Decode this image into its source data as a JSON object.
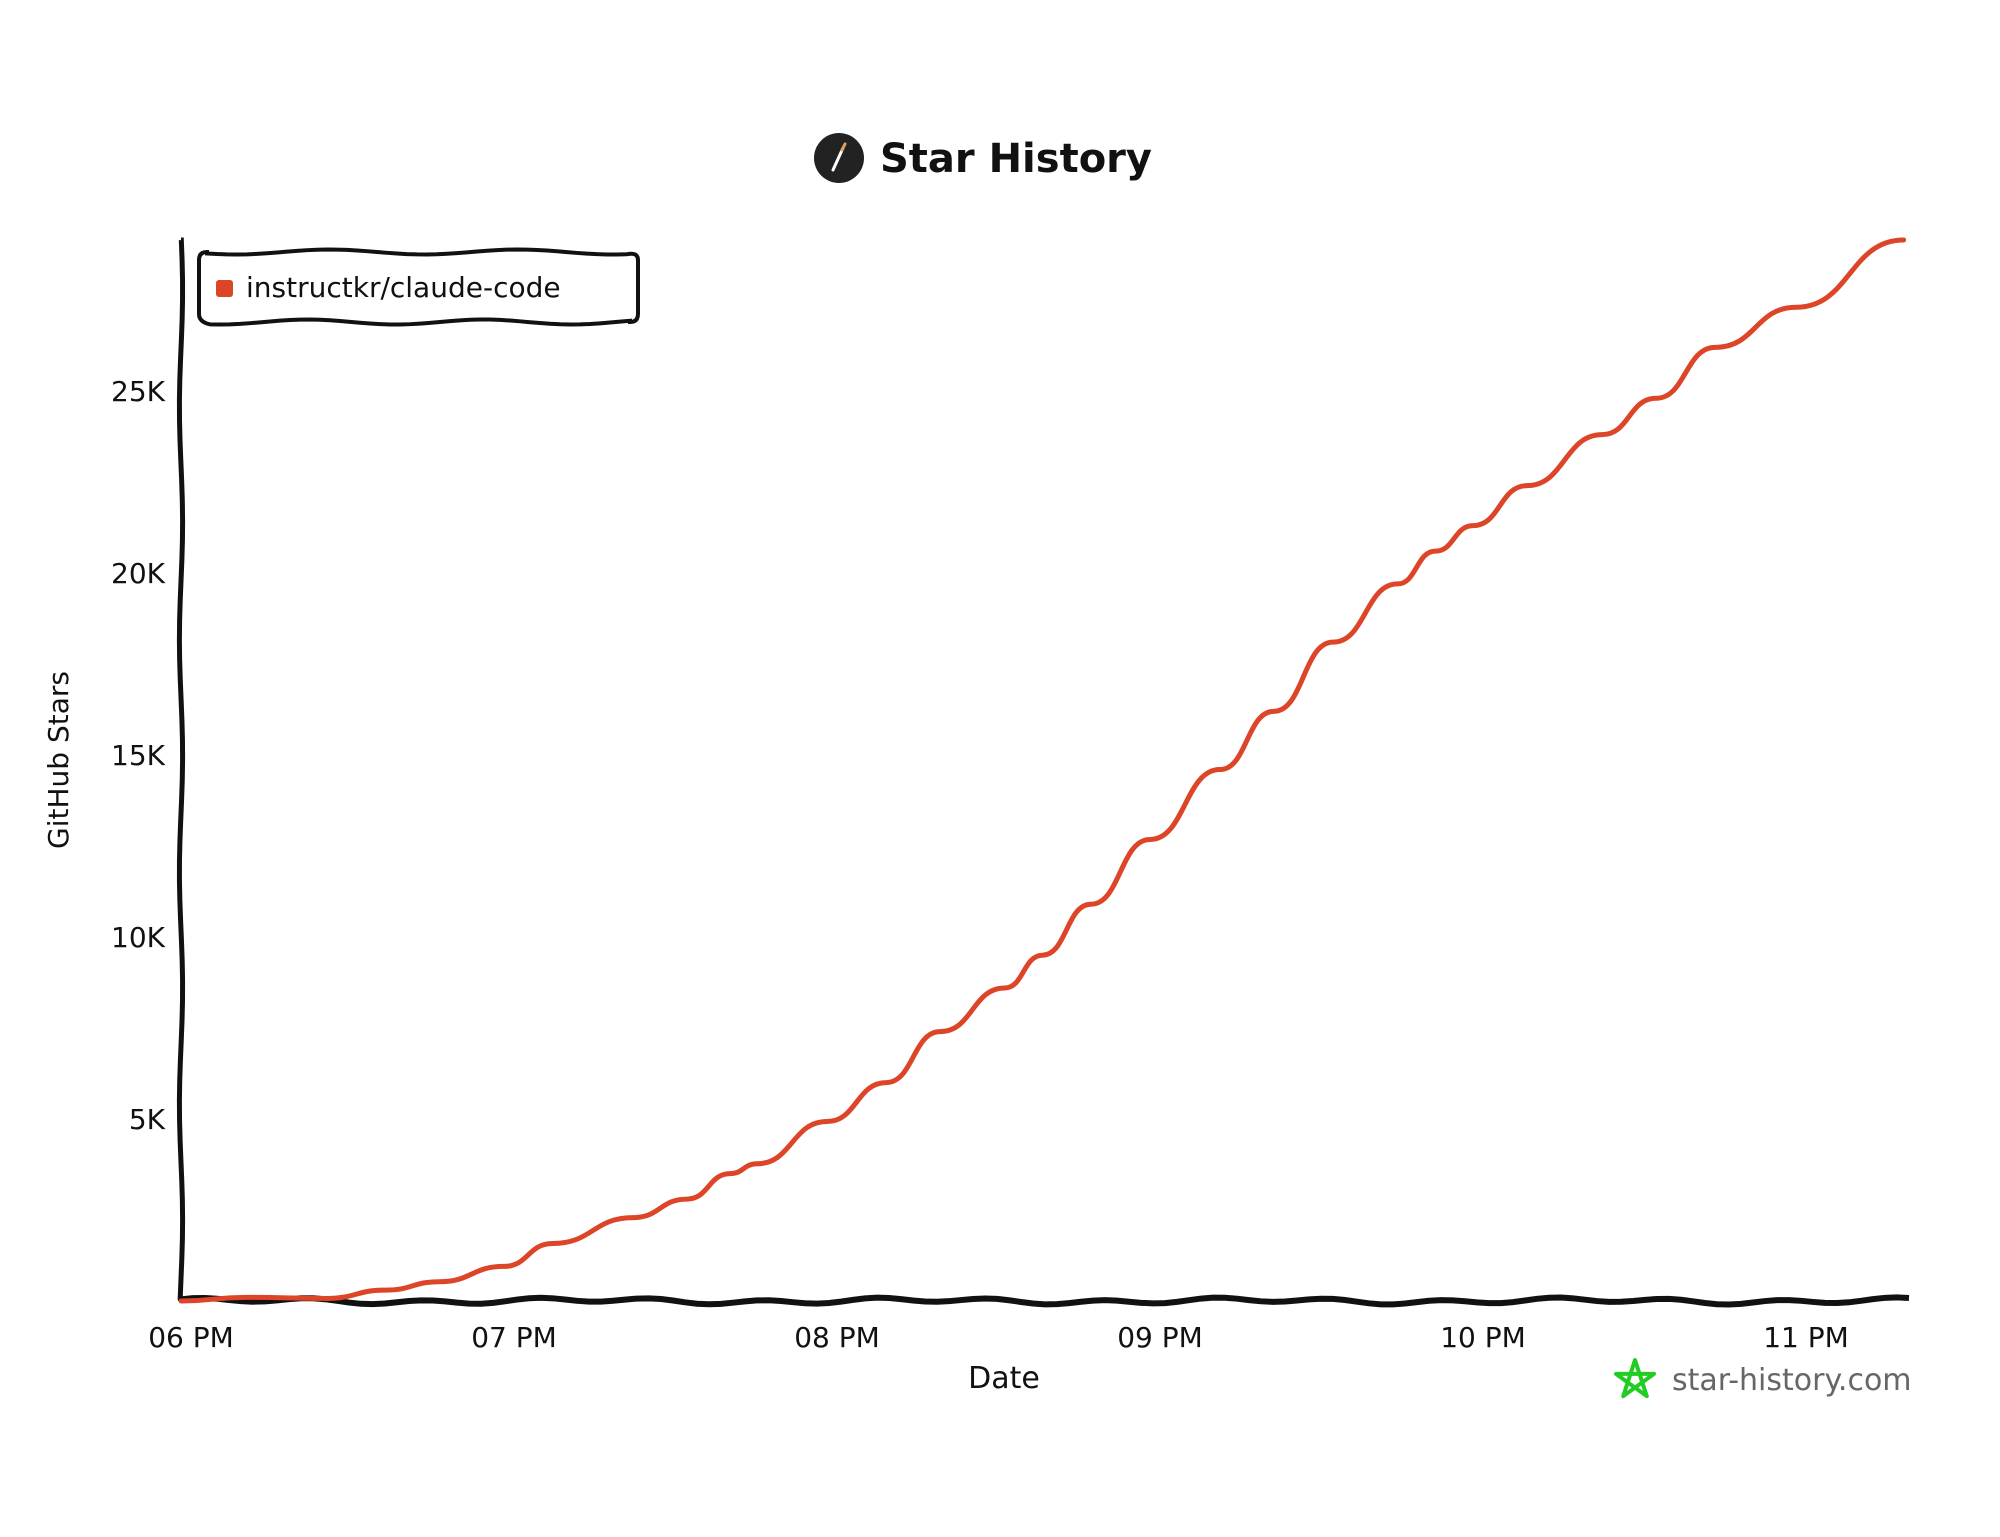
{
  "chart_data": {
    "type": "line",
    "title": "Star History",
    "xlabel": "Date",
    "ylabel": "GitHub Stars",
    "x_tick_labels": [
      "06 PM",
      "07 PM",
      "08 PM",
      "09 PM",
      "10 PM",
      "11 PM"
    ],
    "y_tick_labels": [
      "5K",
      "10K",
      "15K",
      "20K",
      "25K"
    ],
    "y_ticks": [
      5000,
      10000,
      15000,
      20000,
      25000
    ],
    "xlim": [
      "18:00",
      "23:20"
    ],
    "ylim": [
      0,
      29200
    ],
    "grid": false,
    "legend_position": "top-left",
    "series": [
      {
        "name": "instructkr/claude-code",
        "color": "#dd4528",
        "x": [
          "18:00",
          "18:12",
          "18:27",
          "18:38",
          "18:48",
          "19:00",
          "19:09",
          "19:24",
          "19:34",
          "19:42",
          "19:47",
          "20:00",
          "20:11",
          "20:21",
          "20:33",
          "20:40",
          "20:49",
          "21:00",
          "21:13",
          "21:23",
          "21:34",
          "21:46",
          "21:53",
          "22:00",
          "22:10",
          "22:24",
          "22:34",
          "22:45",
          "23:00",
          "23:20"
        ],
        "y": [
          0,
          100,
          70,
          300,
          530,
          950,
          1580,
          2290,
          2800,
          3500,
          3770,
          4930,
          6000,
          7400,
          8600,
          9500,
          10900,
          12680,
          14600,
          16200,
          18100,
          19700,
          20600,
          21300,
          22400,
          23800,
          24800,
          26200,
          27300,
          29150
        ]
      }
    ]
  },
  "watermark": {
    "text": "star-history.com",
    "icon": "star-icon",
    "icon_color": "#22cc22"
  },
  "title_icon": "pen-icon"
}
